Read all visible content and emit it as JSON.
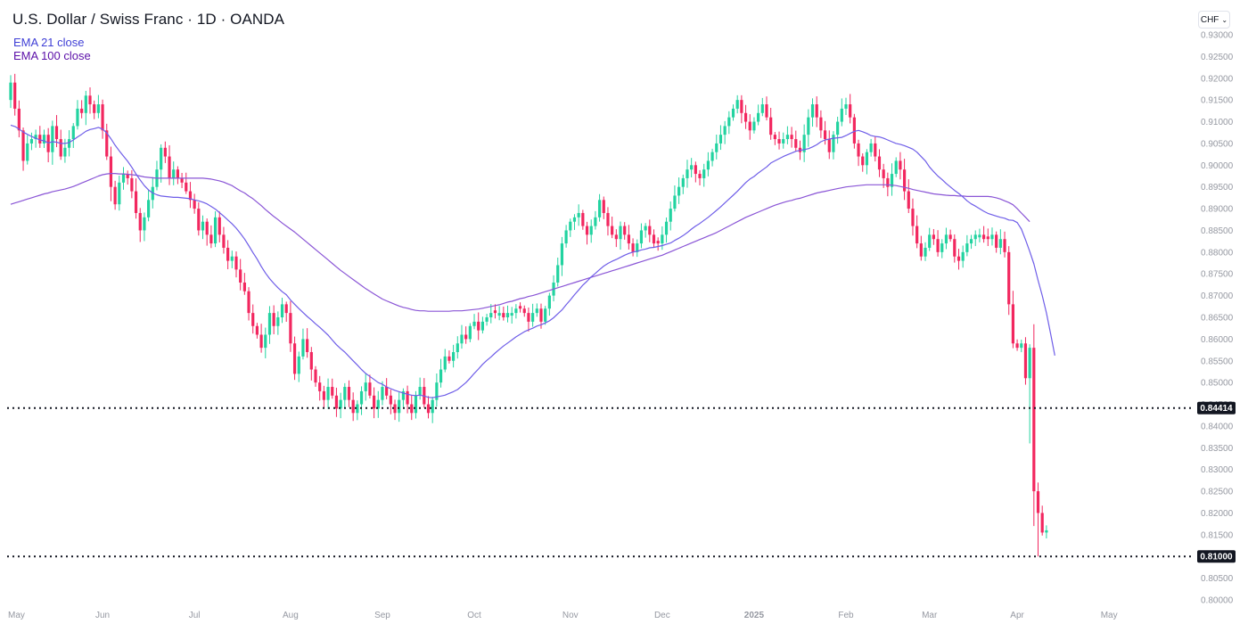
{
  "header": {
    "title": "U.S. Dollar / Swiss Franc · 1D · OANDA"
  },
  "legend": [
    {
      "label": "EMA 21 close",
      "color": "#3f3fd6"
    },
    {
      "label": "EMA 100 close",
      "color": "#5b0fa8"
    }
  ],
  "currency_button": {
    "label": "CHF",
    "icon": "chevron-down-icon"
  },
  "colors": {
    "up": "#22d3a0",
    "down": "#f2275f",
    "ema21": "#6e5de8",
    "ema100": "#8a55d6",
    "dotted_line": "#131722",
    "axis_text": "#9598a1"
  },
  "chart_data": {
    "type": "candlestick",
    "instrument": "U.S. Dollar / Swiss Franc",
    "timeframe": "1D",
    "source": "OANDA",
    "ylim": [
      0.798,
      0.932
    ],
    "y_ticks": [
      "0.93000",
      "0.92500",
      "0.92000",
      "0.91500",
      "0.91000",
      "0.90500",
      "0.90000",
      "0.89500",
      "0.89000",
      "0.88500",
      "0.88000",
      "0.87500",
      "0.87000",
      "0.86500",
      "0.86000",
      "0.85500",
      "0.85000",
      "0.84500",
      "0.84000",
      "0.83500",
      "0.83000",
      "0.82500",
      "0.82000",
      "0.81500",
      "0.81000",
      "0.80500",
      "0.80000"
    ],
    "x_ticks": [
      "May",
      "Jun",
      "Jul",
      "Aug",
      "Sep",
      "Oct",
      "Nov",
      "Dec",
      "2025",
      "Feb",
      "Mar",
      "Apr",
      "May"
    ],
    "x_tick_index": [
      0,
      22,
      44,
      67,
      89,
      111,
      134,
      156,
      178,
      200,
      220,
      241,
      263
    ],
    "horizontal_lines": [
      {
        "value": 0.84414,
        "label": "0.84414",
        "style": "dotted"
      },
      {
        "value": 0.81,
        "label": "0.81000",
        "style": "dotted"
      }
    ],
    "closes": [
      0.919,
      0.913,
      0.908,
      0.901,
      0.905,
      0.906,
      0.907,
      0.905,
      0.907,
      0.903,
      0.909,
      0.906,
      0.902,
      0.904,
      0.906,
      0.909,
      0.913,
      0.912,
      0.916,
      0.914,
      0.912,
      0.914,
      0.908,
      0.902,
      0.895,
      0.891,
      0.896,
      0.898,
      0.897,
      0.894,
      0.889,
      0.885,
      0.888,
      0.892,
      0.895,
      0.899,
      0.904,
      0.902,
      0.897,
      0.899,
      0.897,
      0.896,
      0.894,
      0.892,
      0.89,
      0.885,
      0.887,
      0.884,
      0.882,
      0.888,
      0.884,
      0.881,
      0.878,
      0.879,
      0.876,
      0.873,
      0.871,
      0.866,
      0.863,
      0.861,
      0.858,
      0.861,
      0.866,
      0.863,
      0.865,
      0.868,
      0.866,
      0.859,
      0.852,
      0.856,
      0.86,
      0.857,
      0.853,
      0.85,
      0.848,
      0.846,
      0.849,
      0.847,
      0.844,
      0.846,
      0.849,
      0.846,
      0.843,
      0.845,
      0.848,
      0.85,
      0.847,
      0.844,
      0.846,
      0.849,
      0.847,
      0.845,
      0.843,
      0.846,
      0.848,
      0.845,
      0.843,
      0.847,
      0.849,
      0.845,
      0.843,
      0.846,
      0.85,
      0.853,
      0.856,
      0.855,
      0.857,
      0.859,
      0.861,
      0.86,
      0.863,
      0.864,
      0.862,
      0.864,
      0.865,
      0.866,
      0.866,
      0.866,
      0.865,
      0.866,
      0.866,
      0.867,
      0.867,
      0.866,
      0.864,
      0.866,
      0.867,
      0.864,
      0.867,
      0.87,
      0.873,
      0.877,
      0.882,
      0.885,
      0.887,
      0.888,
      0.889,
      0.886,
      0.884,
      0.886,
      0.888,
      0.892,
      0.889,
      0.886,
      0.884,
      0.883,
      0.886,
      0.884,
      0.882,
      0.88,
      0.882,
      0.885,
      0.886,
      0.884,
      0.882,
      0.882,
      0.884,
      0.887,
      0.89,
      0.893,
      0.895,
      0.897,
      0.899,
      0.9,
      0.898,
      0.897,
      0.899,
      0.901,
      0.903,
      0.905,
      0.907,
      0.909,
      0.911,
      0.913,
      0.915,
      0.912,
      0.91,
      0.908,
      0.91,
      0.912,
      0.914,
      0.911,
      0.907,
      0.906,
      0.905,
      0.906,
      0.907,
      0.906,
      0.904,
      0.903,
      0.907,
      0.911,
      0.914,
      0.911,
      0.908,
      0.906,
      0.903,
      0.907,
      0.91,
      0.913,
      0.914,
      0.911,
      0.905,
      0.902,
      0.9,
      0.903,
      0.905,
      0.902,
      0.899,
      0.897,
      0.895,
      0.898,
      0.901,
      0.899,
      0.894,
      0.89,
      0.886,
      0.882,
      0.879,
      0.881,
      0.884,
      0.883,
      0.88,
      0.882,
      0.884,
      0.883,
      0.879,
      0.878,
      0.88,
      0.882,
      0.883,
      0.884,
      0.884,
      0.883,
      0.883,
      0.884,
      0.881,
      0.883,
      0.88,
      0.868,
      0.859,
      0.858,
      0.859,
      0.851,
      0.858,
      0.825,
      0.82,
      0.8155,
      0.816
    ],
    "ema21": [
      0.9092,
      0.9089,
      0.9083,
      0.9076,
      0.9071,
      0.9066,
      0.9062,
      0.9058,
      0.9056,
      0.9051,
      0.9054,
      0.9053,
      0.905,
      0.905,
      0.9052,
      0.9058,
      0.9065,
      0.9071,
      0.9078,
      0.9082,
      0.9084,
      0.9087,
      0.9083,
      0.9074,
      0.9061,
      0.9046,
      0.9033,
      0.9021,
      0.9009,
      0.8995,
      0.898,
      0.8966,
      0.8953,
      0.8943,
      0.8936,
      0.8932,
      0.8929,
      0.8928,
      0.8927,
      0.8926,
      0.8926,
      0.8925,
      0.8924,
      0.8923,
      0.892,
      0.8918,
      0.8915,
      0.8911,
      0.8905,
      0.8899,
      0.8891,
      0.8883,
      0.8874,
      0.8865,
      0.8855,
      0.8843,
      0.883,
      0.8815,
      0.8799,
      0.8784,
      0.8767,
      0.8752,
      0.8739,
      0.8728,
      0.8718,
      0.8709,
      0.8702,
      0.869,
      0.868,
      0.867,
      0.8661,
      0.8652,
      0.8644,
      0.8635,
      0.8627,
      0.8618,
      0.8609,
      0.8598,
      0.8587,
      0.8578,
      0.857,
      0.856,
      0.855,
      0.854,
      0.853,
      0.8521,
      0.8514,
      0.8507,
      0.85,
      0.8496,
      0.849,
      0.8486,
      0.8482,
      0.8479,
      0.8476,
      0.8473,
      0.8471,
      0.847,
      0.8471,
      0.8469,
      0.8466,
      0.8465,
      0.8467,
      0.8469,
      0.8471,
      0.8475,
      0.8479,
      0.8484,
      0.8492,
      0.85,
      0.851,
      0.8521,
      0.8531,
      0.8542,
      0.8551,
      0.8559,
      0.8568,
      0.8576,
      0.8584,
      0.8591,
      0.8598,
      0.8605,
      0.8611,
      0.8617,
      0.8621,
      0.8625,
      0.863,
      0.8633,
      0.8637,
      0.8642,
      0.8649,
      0.8658,
      0.8667,
      0.8679,
      0.869,
      0.8702,
      0.8713,
      0.8724,
      0.8733,
      0.8743,
      0.8751,
      0.876,
      0.8768,
      0.8774,
      0.8779,
      0.8783,
      0.8788,
      0.8793,
      0.8797,
      0.88,
      0.8802,
      0.8805,
      0.8807,
      0.881,
      0.8811,
      0.8813,
      0.8815,
      0.8818,
      0.8821,
      0.8827,
      0.8832,
      0.8838,
      0.8845,
      0.8853,
      0.886,
      0.8866,
      0.8873,
      0.888,
      0.8888,
      0.8896,
      0.8904,
      0.8913,
      0.8922,
      0.8931,
      0.894,
      0.895,
      0.896,
      0.8968,
      0.8974,
      0.8982,
      0.8989,
      0.8996,
      0.9005,
      0.901,
      0.9015,
      0.902,
      0.9024,
      0.9028,
      0.9032,
      0.9034,
      0.9036,
      0.9038,
      0.9042,
      0.9047,
      0.9054,
      0.9058,
      0.906,
      0.9062,
      0.9063,
      0.9064,
      0.9068,
      0.9073,
      0.9078,
      0.908,
      0.9077,
      0.9073,
      0.9068,
      0.9066,
      0.9065,
      0.9062,
      0.9058,
      0.9054,
      0.905,
      0.9048,
      0.9045,
      0.9041,
      0.9037,
      0.903,
      0.902,
      0.901,
      0.8996,
      0.8985,
      0.8975,
      0.8967,
      0.8958,
      0.895,
      0.8942,
      0.8935,
      0.8927,
      0.8918,
      0.8911,
      0.8906,
      0.89,
      0.8894,
      0.8889,
      0.8886,
      0.8883,
      0.888,
      0.8878,
      0.8874,
      0.8873,
      0.8868,
      0.8853,
      0.8828,
      0.8802,
      0.8773,
      0.8735,
      0.87,
      0.866,
      0.8612,
      0.8562
    ],
    "ema100": [
      0.891,
      0.8913,
      0.8916,
      0.8919,
      0.8922,
      0.8925,
      0.8928,
      0.8931,
      0.8934,
      0.8936,
      0.8939,
      0.8941,
      0.8943,
      0.8945,
      0.8948,
      0.8951,
      0.8955,
      0.8959,
      0.8963,
      0.8967,
      0.8971,
      0.8975,
      0.8978,
      0.898,
      0.8981,
      0.8981,
      0.898,
      0.898,
      0.8979,
      0.8978,
      0.8977,
      0.8975,
      0.8973,
      0.8972,
      0.8971,
      0.897,
      0.897,
      0.897,
      0.897,
      0.897,
      0.897,
      0.897,
      0.897,
      0.897,
      0.897,
      0.897,
      0.897,
      0.8969,
      0.8968,
      0.8966,
      0.8964,
      0.8961,
      0.8957,
      0.8953,
      0.8947,
      0.8941,
      0.8936,
      0.8929,
      0.8923,
      0.8915,
      0.8907,
      0.8898,
      0.889,
      0.8882,
      0.8875,
      0.8867,
      0.886,
      0.8853,
      0.8846,
      0.8838,
      0.883,
      0.8822,
      0.8814,
      0.8806,
      0.8798,
      0.879,
      0.8782,
      0.8774,
      0.8766,
      0.8758,
      0.8751,
      0.8744,
      0.8737,
      0.873,
      0.8723,
      0.8716,
      0.871,
      0.8704,
      0.8698,
      0.8692,
      0.8688,
      0.8684,
      0.868,
      0.8676,
      0.8673,
      0.8671,
      0.8668,
      0.8666,
      0.8665,
      0.8665,
      0.8664,
      0.8664,
      0.8664,
      0.8664,
      0.8664,
      0.8664,
      0.8665,
      0.8665,
      0.8665,
      0.8666,
      0.8667,
      0.8668,
      0.8669,
      0.8671,
      0.8673,
      0.8675,
      0.8677,
      0.8679,
      0.8682,
      0.8685,
      0.8687,
      0.869,
      0.8693,
      0.8695,
      0.8698,
      0.87,
      0.8703,
      0.8706,
      0.8709,
      0.8712,
      0.8715,
      0.8718,
      0.8721,
      0.8724,
      0.8727,
      0.873,
      0.8733,
      0.8736,
      0.8739,
      0.8742,
      0.8745,
      0.8748,
      0.8751,
      0.8754,
      0.8757,
      0.876,
      0.8763,
      0.8766,
      0.8769,
      0.8772,
      0.8775,
      0.8778,
      0.8781,
      0.8784,
      0.8787,
      0.879,
      0.8793,
      0.8797,
      0.8801,
      0.8805,
      0.8809,
      0.8813,
      0.8817,
      0.8821,
      0.8825,
      0.8829,
      0.8833,
      0.8837,
      0.8841,
      0.8845,
      0.885,
      0.8855,
      0.886,
      0.8865,
      0.887,
      0.8875,
      0.888,
      0.8884,
      0.8888,
      0.8892,
      0.8896,
      0.89,
      0.8904,
      0.8908,
      0.8911,
      0.8914,
      0.8917,
      0.8919,
      0.8922,
      0.8924,
      0.8927,
      0.893,
      0.8933,
      0.8936,
      0.8938,
      0.894,
      0.8942,
      0.8944,
      0.8946,
      0.8948,
      0.895,
      0.8951,
      0.8952,
      0.8953,
      0.8954,
      0.8955,
      0.8955,
      0.8955,
      0.8955,
      0.8955,
      0.8955,
      0.8954,
      0.8953,
      0.8951,
      0.8949,
      0.8947,
      0.8944,
      0.8942,
      0.894,
      0.8938,
      0.8936,
      0.8934,
      0.8933,
      0.8932,
      0.8931,
      0.893,
      0.893,
      0.8929,
      0.8929,
      0.8928,
      0.8928,
      0.8928,
      0.8928,
      0.8928,
      0.8928,
      0.8927,
      0.8925,
      0.8922,
      0.8918,
      0.8914,
      0.8909,
      0.89,
      0.889,
      0.888,
      0.887
    ]
  }
}
